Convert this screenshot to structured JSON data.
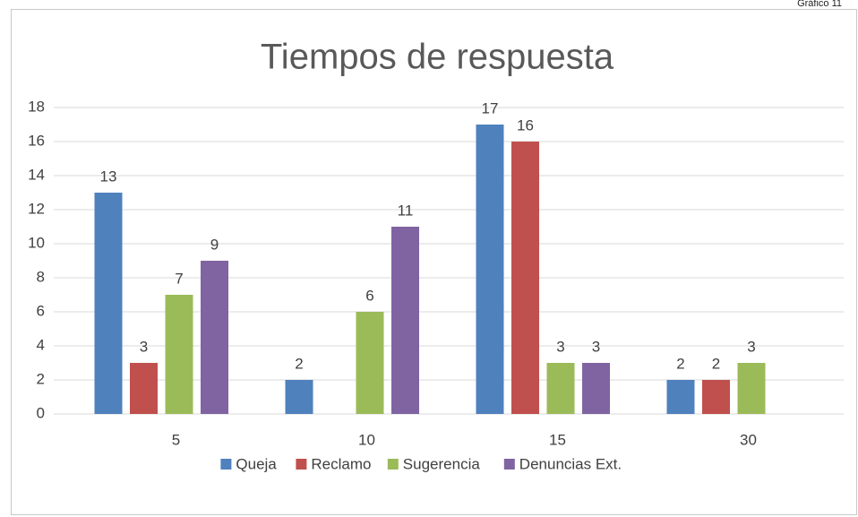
{
  "chart_data": {
    "type": "bar",
    "title": "Tiempos de respuesta",
    "note": "Gráfico 11",
    "categories": [
      "5",
      "10",
      "15",
      "30"
    ],
    "series": [
      {
        "name": "Queja",
        "color": "#4f81bd",
        "values": [
          13,
          2,
          17,
          2
        ]
      },
      {
        "name": "Reclamo",
        "color": "#c0504d",
        "values": [
          3,
          null,
          16,
          2
        ]
      },
      {
        "name": "Sugerencia",
        "color": "#9bbb59",
        "values": [
          7,
          6,
          3,
          3
        ]
      },
      {
        "name": "Denuncias Ext.",
        "color": "#8064a2",
        "values": [
          9,
          11,
          3,
          null
        ]
      }
    ],
    "ylim": [
      0,
      18
    ],
    "yticks": [
      0,
      2,
      4,
      6,
      8,
      10,
      12,
      14,
      16,
      18
    ],
    "grid": true,
    "legend": "bottom"
  }
}
